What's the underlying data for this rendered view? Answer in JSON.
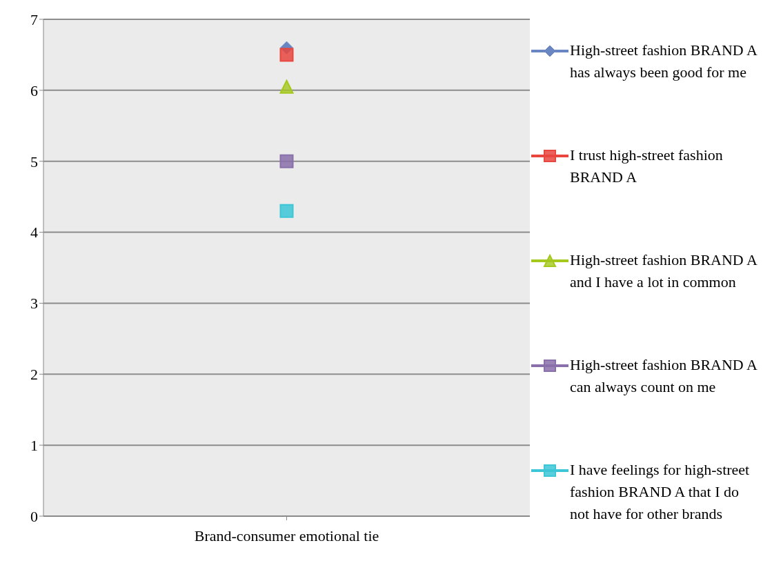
{
  "chart_data": {
    "type": "line",
    "categories": [
      "Brand-consumer emotional tie"
    ],
    "series": [
      {
        "name": "High-street fashion BRAND A has always been good for me",
        "color": "#6a86c2",
        "marker": "diamond",
        "values": [
          6.6
        ]
      },
      {
        "name": "I trust high-street fashion BRAND A",
        "color": "#e8463f",
        "marker": "square",
        "values": [
          6.5
        ]
      },
      {
        "name": "High-street fashion BRAND A and I have a lot in common",
        "color": "#a4c81c",
        "marker": "triangle",
        "values": [
          6.05
        ]
      },
      {
        "name": "High-street fashion BRAND A can always count on me",
        "color": "#8a70aa",
        "marker": "square",
        "values": [
          5.0
        ]
      },
      {
        "name": "I have feelings for high-street fashion BRAND A that I do not have for other brands",
        "color": "#3cc6d6",
        "marker": "square",
        "values": [
          4.3
        ]
      }
    ],
    "ylim": [
      0,
      7
    ],
    "yticks": [
      0,
      1,
      2,
      3,
      4,
      5,
      6,
      7
    ],
    "grid": "y",
    "legend": "right"
  }
}
